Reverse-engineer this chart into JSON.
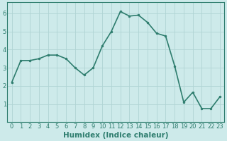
{
  "x": [
    0,
    1,
    2,
    3,
    4,
    5,
    6,
    7,
    8,
    9,
    10,
    11,
    12,
    13,
    14,
    15,
    16,
    17,
    18,
    19,
    20,
    21,
    22,
    23
  ],
  "y": [
    2.2,
    3.4,
    3.4,
    3.5,
    3.7,
    3.7,
    3.5,
    3.0,
    2.6,
    3.0,
    4.2,
    5.0,
    6.1,
    5.85,
    5.9,
    5.5,
    4.9,
    4.75,
    3.1,
    1.1,
    1.65,
    0.75,
    0.75,
    1.4
  ],
  "line_color": "#2e7d6e",
  "marker": "o",
  "marker_size": 2.0,
  "bg_color": "#cdeaea",
  "grid_color": "#b0d4d4",
  "xlabel": "Humidex (Indice chaleur)",
  "xlabel_fontsize": 7.5,
  "ylim": [
    0,
    6.6
  ],
  "xlim": [
    -0.5,
    23.5
  ],
  "yticks": [
    1,
    2,
    3,
    4,
    5,
    6
  ],
  "xtick_labels": [
    "0",
    "1",
    "2",
    "3",
    "4",
    "5",
    "6",
    "7",
    "8",
    "9",
    "10",
    "11",
    "12",
    "13",
    "14",
    "15",
    "16",
    "17",
    "18",
    "19",
    "20",
    "21",
    "22",
    "23"
  ],
  "tick_fontsize": 6.0,
  "linewidth": 1.2,
  "tick_color": "#2e7d6e",
  "spine_color": "#2e7d6e"
}
